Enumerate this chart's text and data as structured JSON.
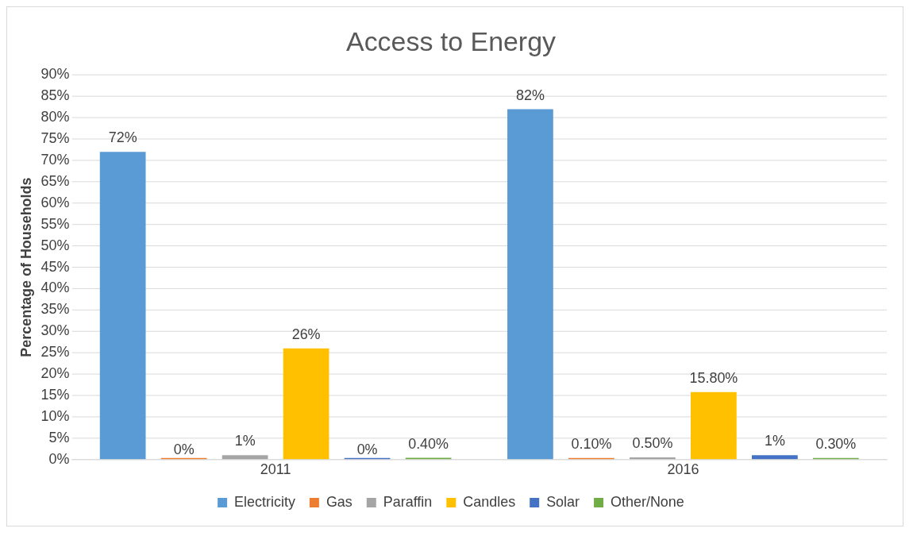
{
  "chart_data": {
    "type": "bar",
    "title": "Access to Energy",
    "ylabel": "Percentage of Households",
    "categories": [
      "2011",
      "2016"
    ],
    "series": [
      {
        "name": "Electricity",
        "color": "#5b9bd5",
        "values": [
          72,
          82
        ],
        "value_labels": [
          "72%",
          "82%"
        ]
      },
      {
        "name": "Gas",
        "color": "#ed7d31",
        "values": [
          0,
          0.1
        ],
        "value_labels": [
          "0%",
          "0.10%"
        ]
      },
      {
        "name": "Paraffin",
        "color": "#a5a5a5",
        "values": [
          1,
          0.5
        ],
        "value_labels": [
          "1%",
          "0.50%"
        ]
      },
      {
        "name": "Candles",
        "color": "#ffc000",
        "values": [
          26,
          15.8
        ],
        "value_labels": [
          "26%",
          "15.80%"
        ]
      },
      {
        "name": "Solar",
        "color": "#4472c4",
        "values": [
          0,
          1
        ],
        "value_labels": [
          "0%",
          "1%"
        ]
      },
      {
        "name": "Other/None",
        "color": "#70ad47",
        "values": [
          0.4,
          0.3
        ],
        "value_labels": [
          "0.40%",
          "0.30%"
        ]
      }
    ],
    "ylim": [
      0,
      90
    ],
    "yticks": [
      {
        "value": 0,
        "label": "0%"
      },
      {
        "value": 5,
        "label": "5%"
      },
      {
        "value": 10,
        "label": "10%"
      },
      {
        "value": 15,
        "label": "15%"
      },
      {
        "value": 20,
        "label": "20%"
      },
      {
        "value": 25,
        "label": "25%"
      },
      {
        "value": 30,
        "label": "30%"
      },
      {
        "value": 35,
        "label": "35%"
      },
      {
        "value": 40,
        "label": "40%"
      },
      {
        "value": 45,
        "label": "45%"
      },
      {
        "value": 50,
        "label": "50%"
      },
      {
        "value": 55,
        "label": "55%"
      },
      {
        "value": 60,
        "label": "60%"
      },
      {
        "value": 65,
        "label": "65%"
      },
      {
        "value": 70,
        "label": "70%"
      },
      {
        "value": 75,
        "label": "75%"
      },
      {
        "value": 80,
        "label": "80%"
      },
      {
        "value": 85,
        "label": "85%"
      },
      {
        "value": 90,
        "label": "90%"
      }
    ],
    "grid": "y",
    "legend": "bottom"
  }
}
